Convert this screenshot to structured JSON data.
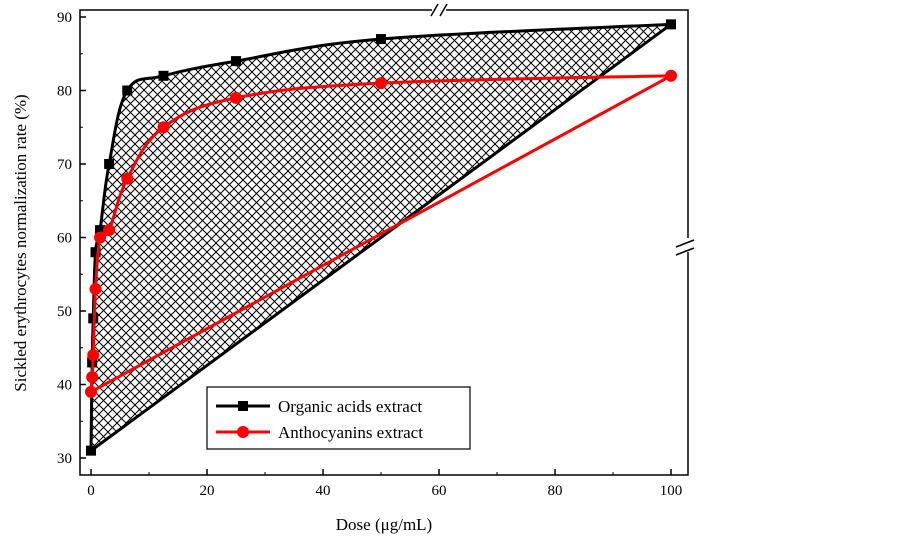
{
  "chart_data": {
    "type": "line",
    "title": "",
    "xlabel": "Dose (μg/mL)",
    "ylabel": "Sickled erythrocytes normalization rate (%)",
    "xlim": [
      -2,
      103
    ],
    "ylim": [
      29,
      91
    ],
    "xticks": [
      0,
      20,
      40,
      60,
      80,
      100
    ],
    "yticks": [
      30,
      40,
      50,
      60,
      70,
      80,
      90
    ],
    "grid": false,
    "legend_position": "bottom-center",
    "axis_breaks": [
      "top axis near x=60",
      "right axis near y=59"
    ],
    "x": [
      0,
      0.2,
      0.39,
      0.78,
      1.56,
      3.125,
      6.25,
      12.5,
      25,
      50,
      100
    ],
    "series": [
      {
        "name": "Organic acids extract",
        "color": "#000000",
        "marker": "square",
        "values": [
          31,
          43,
          49,
          58,
          61,
          70,
          80,
          82,
          84,
          87,
          89
        ]
      },
      {
        "name": "Anthocyanins extract",
        "color": "#ff0000",
        "marker": "circle",
        "values": [
          39,
          41,
          44,
          53,
          60,
          61,
          68,
          75,
          79,
          81,
          82
        ]
      }
    ],
    "annotations": [
      "hatched area enclosed by Organic acids curve and line from first to last point"
    ]
  }
}
